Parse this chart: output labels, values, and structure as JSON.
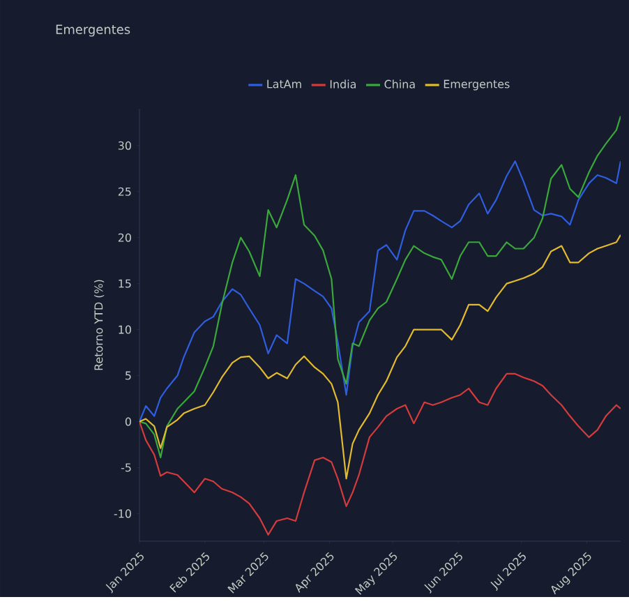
{
  "chart_data": {
    "type": "line",
    "title": "Emergentes",
    "ylabel": "Retorno YTD (%)",
    "x": [
      "2025-01-01",
      "2025-01-04",
      "2025-01-08",
      "2025-01-11",
      "2025-01-14",
      "2025-01-19",
      "2025-01-22",
      "2025-01-27",
      "2025-02-01",
      "2025-02-05",
      "2025-02-09",
      "2025-02-14",
      "2025-02-18",
      "2025-02-22",
      "2025-02-27",
      "2025-03-03",
      "2025-03-07",
      "2025-03-12",
      "2025-03-16",
      "2025-03-20",
      "2025-03-25",
      "2025-03-29",
      "2025-04-02",
      "2025-04-05",
      "2025-04-09",
      "2025-04-12",
      "2025-04-15",
      "2025-04-20",
      "2025-04-24",
      "2025-04-28",
      "2025-05-03",
      "2025-05-07",
      "2025-05-11",
      "2025-05-16",
      "2025-05-20",
      "2025-05-24",
      "2025-05-29",
      "2025-06-02",
      "2025-06-06",
      "2025-06-11",
      "2025-06-15",
      "2025-06-19",
      "2025-06-24",
      "2025-06-28",
      "2025-07-02",
      "2025-07-07",
      "2025-07-11",
      "2025-07-15",
      "2025-07-20",
      "2025-07-24",
      "2025-07-28",
      "2025-08-02",
      "2025-08-06",
      "2025-08-10",
      "2025-08-15",
      "2025-08-17"
    ],
    "series": [
      {
        "name": "LatAm",
        "color": "#2f5ee0",
        "values": [
          0,
          1.7,
          0.6,
          2.6,
          3.6,
          5.0,
          7.0,
          9.7,
          10.9,
          11.4,
          13.0,
          14.4,
          13.8,
          12.3,
          10.5,
          7.4,
          9.4,
          8.5,
          15.5,
          15.0,
          14.2,
          13.6,
          12.3,
          8.6,
          2.9,
          8.2,
          10.8,
          12.0,
          18.6,
          19.2,
          17.6,
          20.8,
          22.9,
          22.9,
          22.4,
          21.8,
          21.1,
          21.8,
          23.6,
          24.8,
          22.6,
          24.1,
          26.7,
          28.3,
          26.1,
          23.0,
          22.4,
          22.6,
          22.3,
          21.4,
          24.1,
          25.9,
          26.8,
          26.5,
          25.9,
          28.3
        ]
      },
      {
        "name": "India",
        "color": "#d43c3c",
        "values": [
          0,
          -2.0,
          -3.6,
          -5.9,
          -5.5,
          -5.8,
          -6.5,
          -7.7,
          -6.2,
          -6.5,
          -7.3,
          -7.7,
          -8.2,
          -8.9,
          -10.5,
          -12.3,
          -10.8,
          -10.5,
          -10.8,
          -7.7,
          -4.2,
          -3.9,
          -4.4,
          -6.2,
          -9.2,
          -7.7,
          -5.8,
          -1.7,
          -0.6,
          0.6,
          1.4,
          1.8,
          -0.2,
          2.1,
          1.8,
          2.1,
          2.6,
          2.9,
          3.6,
          2.1,
          1.8,
          3.6,
          5.2,
          5.2,
          4.8,
          4.4,
          3.9,
          2.9,
          1.8,
          0.6,
          -0.5,
          -1.7,
          -0.9,
          0.6,
          1.8,
          1.4
        ]
      },
      {
        "name": "China",
        "color": "#3aa83a",
        "values": [
          0,
          -0.2,
          -1.4,
          -3.9,
          -0.5,
          1.4,
          2.1,
          3.3,
          5.9,
          8.2,
          12.7,
          17.3,
          20.0,
          18.5,
          15.8,
          23.0,
          21.1,
          24.1,
          26.8,
          21.4,
          20.2,
          18.6,
          15.5,
          6.8,
          4.1,
          8.5,
          8.2,
          11.0,
          12.3,
          13.0,
          15.5,
          17.6,
          19.1,
          18.3,
          17.9,
          17.6,
          15.5,
          18.0,
          19.5,
          19.5,
          18.0,
          18.0,
          19.5,
          18.8,
          18.8,
          20.0,
          22.1,
          26.4,
          27.9,
          25.3,
          24.4,
          27.1,
          28.9,
          30.2,
          31.7,
          33.2
        ]
      },
      {
        "name": "Emergentes",
        "color": "#e2bb2e",
        "values": [
          0,
          0.3,
          -0.5,
          -2.9,
          -0.6,
          0.2,
          0.9,
          1.4,
          1.8,
          3.2,
          4.8,
          6.4,
          7.0,
          7.1,
          5.9,
          4.7,
          5.3,
          4.7,
          6.2,
          7.1,
          5.9,
          5.2,
          4.1,
          2.1,
          -6.2,
          -2.4,
          -0.9,
          0.9,
          2.9,
          4.4,
          7.0,
          8.2,
          10.0,
          10.0,
          10.0,
          10.0,
          8.9,
          10.5,
          12.7,
          12.7,
          12.0,
          13.5,
          15.0,
          15.3,
          15.6,
          16.1,
          16.8,
          18.5,
          19.1,
          17.3,
          17.3,
          18.3,
          18.8,
          19.1,
          19.5,
          20.3
        ]
      }
    ],
    "xlim": [
      "2025-01-01",
      "2025-08-17"
    ],
    "xticks": [
      {
        "value": "2025-01-01",
        "label": "Jan 2025"
      },
      {
        "value": "2025-02-01",
        "label": "Feb 2025"
      },
      {
        "value": "2025-03-01",
        "label": "Mar 2025"
      },
      {
        "value": "2025-04-01",
        "label": "Apr 2025"
      },
      {
        "value": "2025-05-01",
        "label": "May 2025"
      },
      {
        "value": "2025-06-01",
        "label": "Jun 2025"
      },
      {
        "value": "2025-07-01",
        "label": "Jul 2025"
      },
      {
        "value": "2025-08-01",
        "label": "Aug 2025"
      }
    ],
    "ylim": [
      -13,
      34
    ],
    "yticks": [
      -10,
      -5,
      0,
      5,
      10,
      15,
      20,
      25,
      30
    ],
    "legend": "top"
  }
}
